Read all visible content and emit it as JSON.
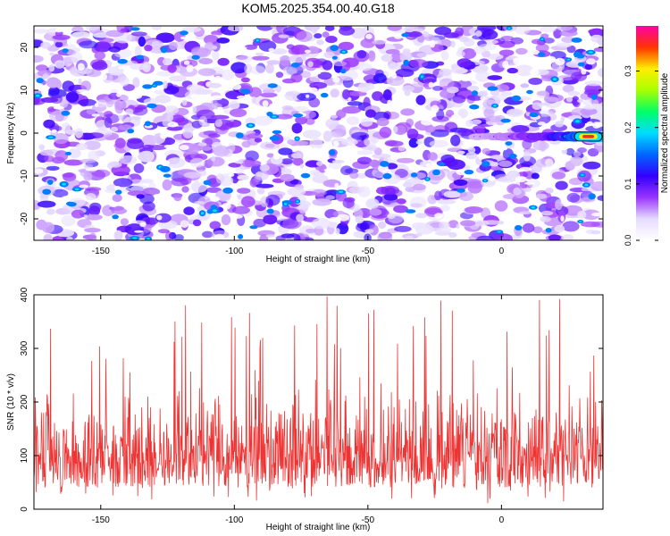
{
  "title": "KOM5.2025.354.00.40.G18",
  "colors": {
    "snr_line": "#ee3333",
    "track": "#111111",
    "background": "#ffffff"
  },
  "chart_data": [
    {
      "type": "heatmap",
      "xlabel": "Height of straight line (km)",
      "ylabel": "Frequency (Hz)",
      "xlim": [
        -175,
        38
      ],
      "ylim": [
        -25,
        25
      ],
      "x_ticks": [
        -150,
        -100,
        -50,
        0
      ],
      "y_ticks": [
        -20,
        -10,
        0,
        10,
        20
      ],
      "grid": false,
      "colorbar": {
        "label": "Normalized spectral amplitude",
        "range": [
          0,
          0.38
        ],
        "ticks": [
          0.0,
          0.1,
          0.2,
          0.3
        ],
        "colormap": "rainbow (white to purple to blue to cyan to green to yellow to red to magenta)"
      },
      "background_level": [
        0.03,
        0.12
      ],
      "signal_track": {
        "frequency_hz": -0.8,
        "x_range": [
          -10,
          37
        ],
        "peak_x": 33,
        "peak_amplitude": 0.3
      }
    },
    {
      "type": "line",
      "xlabel": "Height of straight line (km)",
      "ylabel": "SNR (10 * v/v)",
      "xlim": [
        -175,
        38
      ],
      "ylim": [
        0,
        400
      ],
      "x_ticks": [
        -150,
        -100,
        -50,
        0
      ],
      "y_ticks": [
        0,
        100,
        200,
        300,
        400
      ],
      "grid": false,
      "series": [
        {
          "typical_range": [
            40,
            230
          ],
          "spike_max": 400,
          "mean": 120
        }
      ]
    }
  ]
}
